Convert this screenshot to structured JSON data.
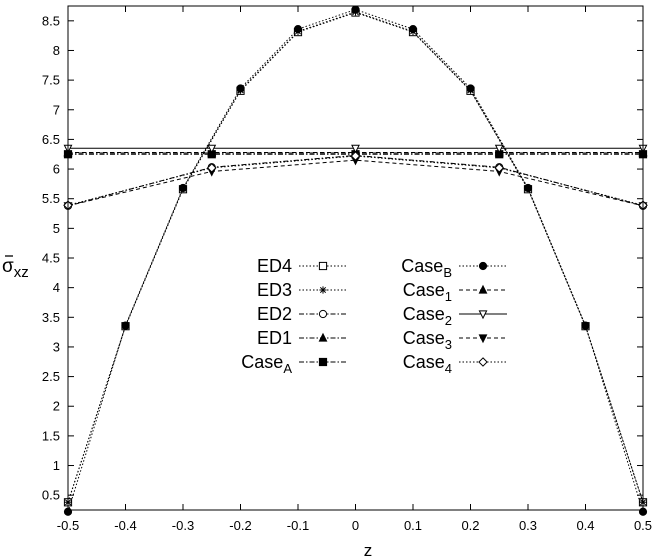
{
  "chart_data": {
    "type": "line",
    "xlabel": "z",
    "ylabel_main": "σ",
    "ylabel_sub": "xz",
    "xlim": [
      -0.5,
      0.5
    ],
    "ylim": [
      0.25,
      8.75
    ],
    "x_ticks": [
      "-0.5",
      "-0.4",
      "-0.3",
      "-0.2",
      "-0.1",
      "0",
      "0.1",
      "0.2",
      "0.3",
      "0.4",
      "0.5"
    ],
    "y_ticks": [
      "0.5",
      "1",
      "1.5",
      "2",
      "2.5",
      "3",
      "3.5",
      "4",
      "4.5",
      "5",
      "5.5",
      "6",
      "6.5",
      "7",
      "7.5",
      "8",
      "8.5"
    ],
    "grid": false,
    "legend_position": "center",
    "series": [
      {
        "name": "ED4",
        "name_sub": "",
        "marker": "open-square",
        "dash": "dotted",
        "x": [
          -0.5,
          -0.4,
          -0.3,
          -0.2,
          -0.1,
          0,
          0.1,
          0.2,
          0.3,
          0.4,
          0.5
        ],
        "y": [
          0.38,
          3.35,
          5.66,
          7.32,
          8.31,
          8.64,
          8.31,
          7.32,
          5.66,
          3.35,
          0.38
        ]
      },
      {
        "name": "ED3",
        "name_sub": "",
        "marker": "asterisk",
        "dash": "dotted",
        "x": [
          -0.5,
          -0.4,
          -0.3,
          -0.2,
          -0.1,
          0,
          0.1,
          0.2,
          0.3,
          0.4,
          0.5
        ],
        "y": [
          0.38,
          3.35,
          5.67,
          7.33,
          8.32,
          8.65,
          8.32,
          7.33,
          5.67,
          3.35,
          0.38
        ]
      },
      {
        "name": "ED2",
        "name_sub": "",
        "marker": "open-circle",
        "dash": "dashdot",
        "x": [
          -0.5,
          -0.25,
          0,
          0.25,
          0.5
        ],
        "y": [
          5.38,
          6.03,
          6.23,
          6.03,
          5.38
        ]
      },
      {
        "name": "ED1",
        "name_sub": "",
        "marker": "filled-triangle",
        "dash": "dashdot",
        "x": [
          -0.5,
          -0.25,
          0,
          0.25,
          0.5
        ],
        "y": [
          6.27,
          6.27,
          6.27,
          6.27,
          6.27
        ]
      },
      {
        "name": "Case",
        "name_sub": "A",
        "marker": "filled-square",
        "dash": "dashdot",
        "x": [
          -0.5,
          -0.25,
          0,
          0.25,
          0.5
        ],
        "y": [
          6.25,
          6.25,
          6.25,
          6.25,
          6.25
        ]
      },
      {
        "name": "Case",
        "name_sub": "B",
        "marker": "filled-circle",
        "dash": "dotted",
        "x": [
          -0.5,
          -0.4,
          -0.3,
          -0.2,
          -0.1,
          0,
          0.1,
          0.2,
          0.3,
          0.4,
          0.5
        ],
        "y": [
          0.22,
          3.36,
          5.68,
          7.36,
          8.36,
          8.69,
          8.36,
          7.36,
          5.68,
          3.36,
          0.22
        ]
      },
      {
        "name": "Case",
        "name_sub": "1",
        "marker": "filled-triangle",
        "dash": "dashed",
        "x": [
          -0.5,
          -0.25,
          0,
          0.25,
          0.5
        ],
        "y": [
          6.28,
          6.28,
          6.28,
          6.28,
          6.28
        ]
      },
      {
        "name": "Case",
        "name_sub": "2",
        "marker": "open-triangle-down",
        "dash": "solid",
        "x": [
          -0.5,
          -0.25,
          0,
          0.25,
          0.5
        ],
        "y": [
          6.35,
          6.35,
          6.35,
          6.35,
          6.35
        ]
      },
      {
        "name": "Case",
        "name_sub": "3",
        "marker": "filled-triangle-down",
        "dash": "dashed",
        "x": [
          -0.5,
          -0.25,
          0,
          0.25,
          0.5
        ],
        "y": [
          5.38,
          5.96,
          6.15,
          5.96,
          5.38
        ]
      },
      {
        "name": "Case",
        "name_sub": "4",
        "marker": "open-diamond",
        "dash": "dotted",
        "x": [
          -0.5,
          -0.25,
          0,
          0.25,
          0.5
        ],
        "y": [
          5.39,
          6.02,
          6.22,
          6.02,
          5.39
        ]
      }
    ]
  }
}
